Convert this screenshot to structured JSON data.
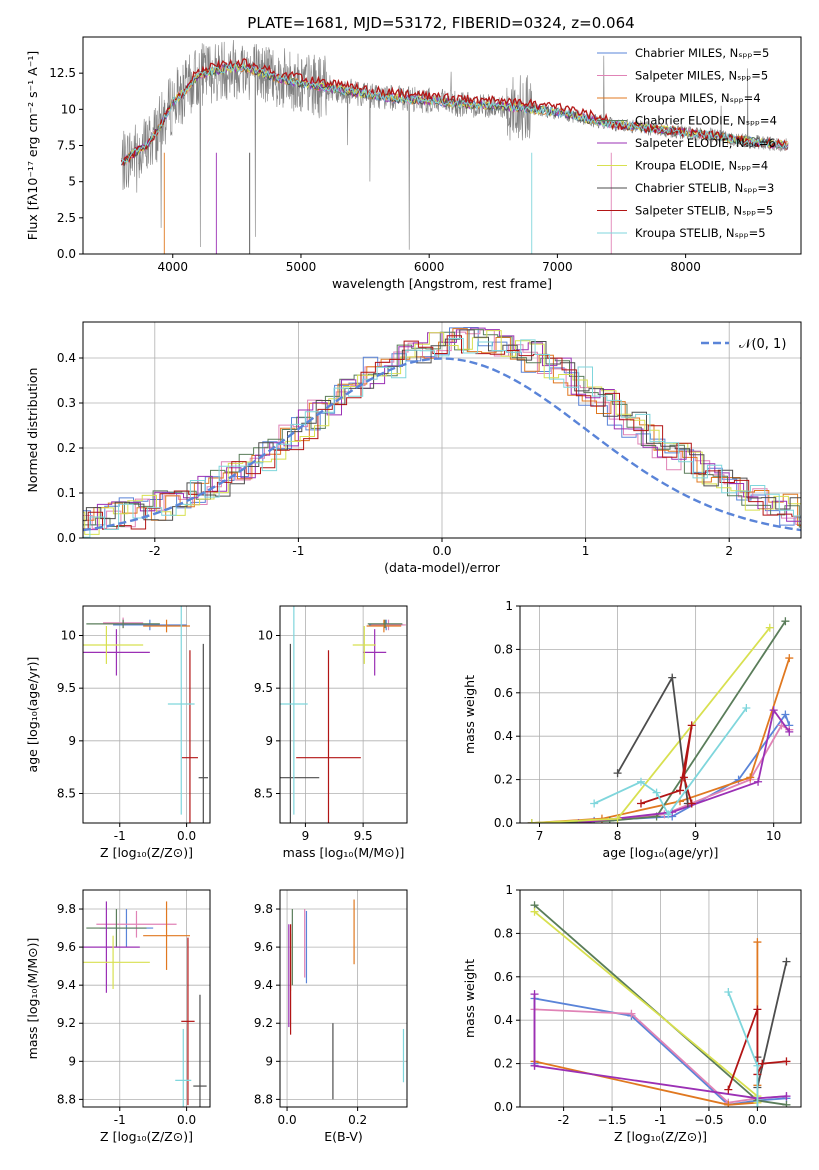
{
  "figure": {
    "title": "PLATE=1681, MJD=53172, FIBERID=0324, z=0.064",
    "colors": [
      "#5a84d8",
      "#e083b6",
      "#e07820",
      "#5a7d5a",
      "#9b30b5",
      "#d8e050",
      "#4d4d4d",
      "#b21515",
      "#7fd6dc"
    ],
    "spectrum_color": "#808080"
  },
  "chart_data": [
    {
      "id": "spectrum",
      "type": "line",
      "title": "PLATE=1681, MJD=53172, FIBERID=0324, z=0.064",
      "xlabel": "wavelength [Angstrom, rest frame]",
      "ylabel": "Flux [fλ10⁻¹⁷ erg cm⁻² s⁻¹ A⁻¹]",
      "xlim": [
        3300,
        8900
      ],
      "ylim": [
        0,
        15
      ],
      "xticks": [
        4000,
        5000,
        6000,
        7000,
        8000
      ],
      "yticks": [
        0.0,
        2.5,
        5.0,
        7.5,
        10.0,
        12.5
      ],
      "grid": false,
      "legend_position": "top-right",
      "legend": [
        "Chabrier MILES, Nₛₚₚ=5",
        "Salpeter MILES, Nₛₚₚ=5",
        "Kroupa MILES, Nₛₚₚ=4",
        "Chabrier ELODIE, Nₛₚₚ=4",
        "Salpeter ELODIE, Nₛₚₚ=6",
        "Kroupa ELODIE, Nₛₚₚ=4",
        "Chabrier STELIB, Nₛₚₚ=3",
        "Salpeter STELIB, Nₛₚₚ=5",
        "Kroupa STELIB, Nₛₚₚ=5"
      ],
      "continuum": {
        "x": [
          3600,
          3700,
          3800,
          3900,
          4000,
          4100,
          4200,
          4300,
          4400,
          4500,
          4600,
          4700,
          4800,
          4900,
          5000,
          5200,
          5400,
          5600,
          5800,
          6000,
          6200,
          6400,
          6600,
          6800,
          7000,
          7200,
          7400,
          7600,
          7800,
          8000,
          8200,
          8400,
          8600,
          8800
        ],
        "y": [
          6.2,
          7.0,
          7.5,
          8.8,
          10.5,
          11.3,
          12.3,
          12.6,
          12.8,
          12.9,
          12.8,
          12.5,
          12.2,
          12.0,
          11.8,
          11.5,
          11.2,
          10.9,
          10.7,
          10.6,
          10.4,
          10.3,
          10.2,
          10.0,
          9.8,
          9.4,
          9.0,
          8.8,
          8.6,
          8.4,
          8.2,
          7.9,
          7.7,
          7.5
        ]
      }
    },
    {
      "id": "residuals",
      "type": "line",
      "xlabel": "(data-model)/error",
      "ylabel": "Normed distribution",
      "xlim": [
        -2.5,
        2.5
      ],
      "ylim": [
        0,
        0.48
      ],
      "xticks": [
        -2,
        -1,
        0,
        1,
        2
      ],
      "yticks": [
        0.0,
        0.1,
        0.2,
        0.3,
        0.4
      ],
      "grid": true,
      "legend_position": "top-right",
      "legend": [
        "𝒩(0, 1)"
      ],
      "gaussian": {
        "mu": 0,
        "sigma": 1
      }
    },
    {
      "id": "age_vs_Z",
      "type": "scatter",
      "xlabel": "Z [log₁₀(Z/Z⊙)]",
      "ylabel": "age  [log₁₀(age/yr)]",
      "xlim": [
        -1.55,
        0.35
      ],
      "ylim": [
        8.22,
        10.28
      ],
      "xticks": [
        -1,
        0
      ],
      "yticks": [
        8.5,
        9.0,
        9.5,
        10.0
      ],
      "grid": true,
      "points": [
        {
          "x": -0.55,
          "y": 10.1,
          "xerr": 0.55,
          "yerr": 0.05
        },
        {
          "x": -0.95,
          "y": 10.12,
          "xerr": 0.3,
          "yerr": 0.05
        },
        {
          "x": -0.3,
          "y": 10.09,
          "xerr": 0.35,
          "yerr": 0.06
        },
        {
          "x": -0.95,
          "y": 10.11,
          "xerr": 0.55,
          "yerr": 0.04
        },
        {
          "x": -1.05,
          "y": 9.84,
          "xerr": 0.5,
          "yerr": 0.22
        },
        {
          "x": -1.2,
          "y": 9.91,
          "xerr": 0.55,
          "yerr": 0.18
        },
        {
          "x": 0.25,
          "y": 8.65,
          "xerr": 0.07,
          "yerr": 1.27
        },
        {
          "x": 0.05,
          "y": 8.84,
          "xerr": 0.12,
          "yerr": 1.02
        },
        {
          "x": -0.08,
          "y": 9.35,
          "xerr": 0.2,
          "yerr": 1.05
        }
      ]
    },
    {
      "id": "age_vs_mass",
      "type": "scatter",
      "xlabel": "mass [log₁₀(M/M⊙)]",
      "ylabel": "",
      "xlim": [
        8.78,
        9.88
      ],
      "ylim": [
        8.22,
        10.28
      ],
      "xticks": [
        9.0,
        9.5
      ],
      "yticks": [
        8.5,
        9.0,
        9.5,
        10.0
      ],
      "grid": true,
      "points": [
        {
          "x": 9.7,
          "y": 10.1,
          "xerr": 0.15,
          "yerr": 0.05
        },
        {
          "x": 9.72,
          "y": 10.1,
          "xerr": 0.15,
          "yerr": 0.05
        },
        {
          "x": 9.68,
          "y": 10.09,
          "xerr": 0.15,
          "yerr": 0.06
        },
        {
          "x": 9.69,
          "y": 10.11,
          "xerr": 0.15,
          "yerr": 0.04
        },
        {
          "x": 9.6,
          "y": 9.84,
          "xerr": 0.1,
          "yerr": 0.22
        },
        {
          "x": 9.51,
          "y": 9.91,
          "xerr": 0.1,
          "yerr": 0.18
        },
        {
          "x": 8.87,
          "y": 8.65,
          "xerr": 0.25,
          "yerr": 1.27
        },
        {
          "x": 9.2,
          "y": 8.84,
          "xerr": 0.28,
          "yerr": 1.02
        },
        {
          "x": 8.9,
          "y": 9.35,
          "xerr": 0.12,
          "yerr": 1.05
        }
      ]
    },
    {
      "id": "weight_vs_age",
      "type": "line",
      "xlabel": "age  [log₁₀(age/yr)]",
      "ylabel": "mass weight",
      "xlim": [
        6.75,
        10.35
      ],
      "ylim": [
        0,
        1
      ],
      "xticks": [
        7,
        8,
        9,
        10
      ],
      "yticks": [
        0.0,
        0.2,
        0.4,
        0.6,
        0.8,
        1.0
      ],
      "grid": true,
      "series": [
        {
          "x": [
            6.9,
            7.7,
            8.7,
            9.55,
            10.15,
            10.2
          ],
          "y": [
            0.0,
            0.01,
            0.03,
            0.2,
            0.5,
            0.45
          ]
        },
        {
          "x": [
            6.9,
            7.8,
            8.6,
            9.7,
            10.1,
            10.2
          ],
          "y": [
            0.0,
            0.01,
            0.04,
            0.2,
            0.45,
            0.43
          ]
        },
        {
          "x": [
            6.9,
            7.8,
            8.8,
            9.7,
            10.2
          ],
          "y": [
            0.0,
            0.02,
            0.1,
            0.21,
            0.76
          ]
        },
        {
          "x": [
            6.9,
            7.9,
            8.5,
            10.15
          ],
          "y": [
            0.0,
            0.01,
            0.03,
            0.93
          ]
        },
        {
          "x": [
            7.5,
            8.7,
            9.8,
            10.0,
            10.2
          ],
          "y": [
            0.0,
            0.05,
            0.19,
            0.52,
            0.42
          ]
        },
        {
          "x": [
            6.9,
            8.0,
            9.95
          ],
          "y": [
            0.0,
            0.02,
            0.9
          ]
        },
        {
          "x": [
            8.0,
            8.7,
            8.9
          ],
          "y": [
            0.23,
            0.67,
            0.09
          ]
        },
        {
          "x": [
            8.3,
            8.8,
            8.95,
            8.85,
            8.95
          ],
          "y": [
            0.09,
            0.15,
            0.45,
            0.21,
            0.09
          ]
        },
        {
          "x": [
            7.7,
            8.3,
            8.5,
            8.65,
            9.65
          ],
          "y": [
            0.09,
            0.19,
            0.14,
            0.04,
            0.53
          ]
        }
      ]
    },
    {
      "id": "mass_vs_Z",
      "type": "scatter",
      "xlabel": "Z [log₁₀(Z/Z⊙)]",
      "ylabel": "mass [log₁₀(M/M⊙)]",
      "xlim": [
        -1.55,
        0.35
      ],
      "ylim": [
        8.76,
        9.9
      ],
      "xticks": [
        -1,
        0
      ],
      "yticks": [
        8.8,
        9.0,
        9.2,
        9.4,
        9.6,
        9.8
      ],
      "grid": true,
      "points": [
        {
          "x": -0.9,
          "y": 9.7,
          "xerr": 0.4,
          "yerr": 0.1
        },
        {
          "x": -0.75,
          "y": 9.72,
          "xerr": 0.6,
          "yerr": 0.07
        },
        {
          "x": -0.3,
          "y": 9.66,
          "xerr": 0.35,
          "yerr": 0.18
        },
        {
          "x": -1.05,
          "y": 9.7,
          "xerr": 0.45,
          "yerr": 0.1
        },
        {
          "x": -1.2,
          "y": 9.6,
          "xerr": 0.5,
          "yerr": 0.24
        },
        {
          "x": -1.1,
          "y": 9.52,
          "xerr": 0.55,
          "yerr": 0.14
        },
        {
          "x": 0.2,
          "y": 8.87,
          "xerr": 0.1,
          "yerr": 0.48
        },
        {
          "x": 0.02,
          "y": 9.21,
          "xerr": 0.1,
          "yerr": 0.44
        },
        {
          "x": -0.05,
          "y": 8.9,
          "xerr": 0.12,
          "yerr": 0.27
        }
      ]
    },
    {
      "id": "mass_vs_ebv",
      "type": "scatter",
      "xlabel": "E(B-V)",
      "ylabel": "",
      "xlim": [
        -0.02,
        0.34
      ],
      "ylim": [
        8.76,
        9.9
      ],
      "xticks": [
        0.0,
        0.2
      ],
      "yticks": [
        8.8,
        9.0,
        9.2,
        9.4,
        9.6,
        9.8
      ],
      "grid": true,
      "points": [
        {
          "x": 0.055,
          "y": 9.6,
          "yerr": 0.19
        },
        {
          "x": 0.05,
          "y": 9.62,
          "yerr": 0.18
        },
        {
          "x": 0.19,
          "y": 9.68,
          "yerr": 0.17
        },
        {
          "x": 0.015,
          "y": 9.6,
          "yerr": 0.2
        },
        {
          "x": 0.005,
          "y": 9.45,
          "yerr": 0.27
        },
        {
          "x": 0.01,
          "y": 9.52,
          "yerr": 0.15
        },
        {
          "x": 0.13,
          "y": 9.0,
          "yerr": 0.2
        },
        {
          "x": 0.01,
          "y": 9.43,
          "yerr": 0.29
        },
        {
          "x": 0.33,
          "y": 9.03,
          "yerr": 0.14
        }
      ]
    },
    {
      "id": "weight_vs_Z",
      "type": "line",
      "xlabel": "Z [log₁₀(Z/Z⊙)]",
      "ylabel": "mass weight",
      "xlim": [
        -2.45,
        0.45
      ],
      "ylim": [
        0,
        1
      ],
      "xticks": [
        -2.0,
        -1.5,
        -1.0,
        -0.5,
        0.0
      ],
      "yticks": [
        0.0,
        0.2,
        0.4,
        0.6,
        0.8,
        1.0
      ],
      "grid": true,
      "series": [
        {
          "x": [
            -2.3,
            -2.3,
            -1.3,
            -0.3,
            0.0,
            0.3
          ],
          "y": [
            0.2,
            0.5,
            0.42,
            0.01,
            0.03,
            0.04
          ]
        },
        {
          "x": [
            -2.3,
            -2.3,
            -1.3,
            -0.3,
            0.0,
            0.3
          ],
          "y": [
            0.19,
            0.45,
            0.43,
            0.02,
            0.04,
            0.05
          ]
        },
        {
          "x": [
            -2.3,
            -0.3,
            0.0,
            0.0,
            0.0
          ],
          "y": [
            0.21,
            0.01,
            0.02,
            0.76,
            0.1
          ]
        },
        {
          "x": [
            -2.3,
            0.0,
            0.3
          ],
          "y": [
            0.93,
            0.03,
            0.01
          ]
        },
        {
          "x": [
            -2.3,
            -2.3,
            0.0,
            0.3
          ],
          "y": [
            0.52,
            0.19,
            0.04,
            0.05
          ]
        },
        {
          "x": [
            -2.3,
            0.0,
            0.0
          ],
          "y": [
            0.9,
            0.05,
            0.02
          ]
        },
        {
          "x": [
            0.0,
            0.0,
            0.3
          ],
          "y": [
            0.23,
            0.09,
            0.67
          ]
        },
        {
          "x": [
            -0.3,
            0.0,
            0.0,
            0.05,
            0.3
          ],
          "y": [
            0.08,
            0.45,
            0.15,
            0.2,
            0.21
          ]
        },
        {
          "x": [
            -0.3,
            0.0,
            0.0
          ],
          "y": [
            0.53,
            0.19,
            0.0
          ]
        }
      ]
    }
  ]
}
